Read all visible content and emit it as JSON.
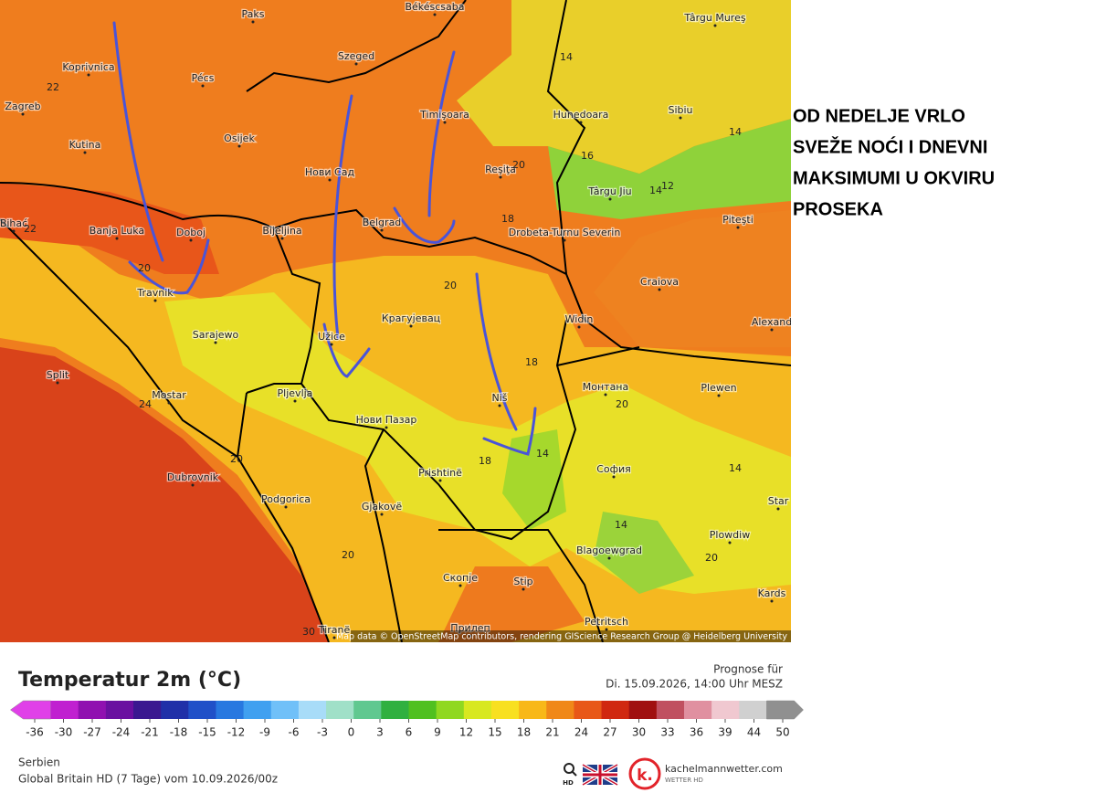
{
  "annotation": {
    "lines": [
      "OD NEDELJE VRLO",
      "SVEŽE NOĆI I DNEVNI",
      "MAKSIMUMI U OKVIRU",
      "PROSEKA"
    ]
  },
  "map": {
    "cities": [
      "Paks",
      "Békéscsaba",
      "Târgu Mureş",
      "Koprivnica",
      "Pécs",
      "Szeged",
      "Zagreb",
      "Timişoara",
      "Hunedoara",
      "Sibiu",
      "Osijek",
      "Kutina",
      "Нови Сад",
      "Reşiţa",
      "Târgu Jiu",
      "Piteşti",
      "Bihać",
      "Banja Luka",
      "Doboj",
      "Bijeljina",
      "Belgrad",
      "Drobeta-Turnu Severin",
      "Travnik",
      "Craiova",
      "Крагујевац",
      "Widin",
      "Alexand",
      "Sarajewo",
      "Užice",
      "Split",
      "Mostar",
      "Pljevlja",
      "Монтана",
      "Plewen",
      "Niš",
      "Нови Пазар",
      "София",
      "Dubrovnik",
      "Prishtinë",
      "Podgorica",
      "Gjakovë",
      "Star",
      "Скопје",
      "Blagoewgrad",
      "Plowdiw",
      "Stip",
      "Kards",
      "Petritsch",
      "Прилеп",
      "Tiranë"
    ],
    "isotherm_labels": [
      22,
      14,
      14,
      16,
      20,
      14,
      12,
      18,
      22,
      20,
      20,
      18,
      24,
      20,
      18,
      14,
      20,
      14,
      14,
      20,
      20,
      30
    ],
    "attribution": "Map data © OpenStreetMap contributors, rendering GIScience Research Group @ Heidelberg University"
  },
  "legend": {
    "title": "Temperatur 2m (°C)",
    "forecast_label": "Prognose für",
    "forecast_time": "Di. 15.09.2026, 14:00 Uhr MESZ",
    "ticks": [
      -36,
      -30,
      -27,
      -24,
      -21,
      -18,
      -15,
      -12,
      -9,
      -6,
      -3,
      0,
      3,
      6,
      9,
      12,
      15,
      18,
      21,
      24,
      27,
      30,
      33,
      36,
      39,
      44,
      50
    ],
    "colors": [
      "#e040e8",
      "#c020d0",
      "#9010b0",
      "#6a10a0",
      "#3a1890",
      "#2030a8",
      "#2050c8",
      "#2878e0",
      "#40a0f0",
      "#70c0f8",
      "#a8dcf8",
      "#a0e0c8",
      "#60c890",
      "#30b040",
      "#50c020",
      "#90d820",
      "#d8e820",
      "#f8e020",
      "#f8b818",
      "#f08818",
      "#e85818",
      "#d02810",
      "#a01010",
      "#c05060",
      "#e090a0",
      "#f0c8d0",
      "#d0d0d0",
      "#909090"
    ]
  },
  "footer": {
    "region": "Serbien",
    "model": "Global Britain HD (7 Tage) vom 10.09.2026/00z",
    "hd": "HD",
    "brand": "kachelmannwetter.com",
    "brand_sub": "WETTER HD"
  }
}
